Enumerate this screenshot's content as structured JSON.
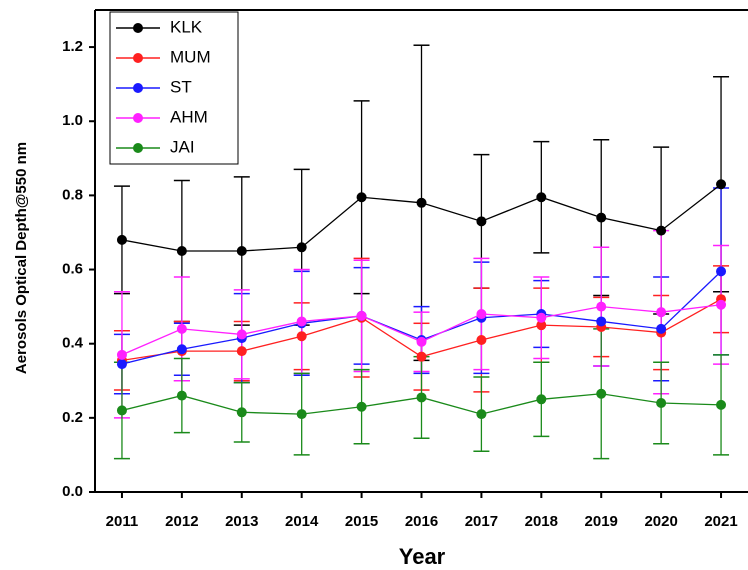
{
  "chart_data": {
    "type": "line",
    "x_label": "Year",
    "y_label": "Aerosols Optical Depth@550 nm",
    "x": [
      2011,
      2012,
      2013,
      2014,
      2015,
      2016,
      2017,
      2018,
      2019,
      2020,
      2021
    ],
    "xlim": [
      2010.55,
      2021.45
    ],
    "xticks": [
      2011,
      2012,
      2013,
      2014,
      2015,
      2016,
      2017,
      2018,
      2019,
      2020,
      2021
    ],
    "ylim": [
      0,
      1.3
    ],
    "yticks": [
      {
        "value": 0,
        "label": "0.0"
      },
      0.2,
      0.4,
      0.6,
      0.8,
      {
        "value": 1,
        "label": "1.0"
      },
      1.2
    ],
    "legend": "upper-left",
    "series": [
      {
        "name": "KLK",
        "color": "#000000",
        "values": [
          0.68,
          0.65,
          0.65,
          0.66,
          0.795,
          0.78,
          0.73,
          0.795,
          0.74,
          0.705,
          0.83
        ],
        "errors": [
          0.145,
          0.19,
          0.2,
          0.21,
          0.26,
          0.425,
          0.18,
          0.15,
          0.21,
          0.225,
          0.29
        ]
      },
      {
        "name": "MUM",
        "color": "#ff2020",
        "values": [
          0.355,
          0.38,
          0.38,
          0.42,
          0.47,
          0.365,
          0.41,
          0.45,
          0.445,
          0.43,
          0.52
        ],
        "errors": [
          0.08,
          0.08,
          0.08,
          0.09,
          0.16,
          0.09,
          0.14,
          0.1,
          0.08,
          0.1,
          0.09
        ]
      },
      {
        "name": "ST",
        "color": "#1a1aff",
        "values": [
          0.345,
          0.385,
          0.415,
          0.455,
          0.475,
          0.41,
          0.47,
          0.48,
          0.46,
          0.44,
          0.595
        ],
        "errors": [
          0.08,
          0.07,
          0.12,
          0.14,
          0.13,
          0.09,
          0.15,
          0.09,
          0.12,
          0.14,
          0.225
        ]
      },
      {
        "name": "AHM",
        "color": "#ff20ff",
        "values": [
          0.37,
          0.44,
          0.425,
          0.46,
          0.475,
          0.405,
          0.48,
          0.47,
          0.5,
          0.485,
          0.505
        ],
        "errors": [
          0.17,
          0.14,
          0.12,
          0.14,
          0.15,
          0.08,
          0.15,
          0.11,
          0.16,
          0.22,
          0.16
        ]
      },
      {
        "name": "JAI",
        "color": "#1a8a1a",
        "values": [
          0.22,
          0.26,
          0.215,
          0.21,
          0.23,
          0.255,
          0.21,
          0.25,
          0.265,
          0.24,
          0.235
        ],
        "errors": [
          0.13,
          0.1,
          0.08,
          0.11,
          0.1,
          0.11,
          0.1,
          0.1,
          0.175,
          0.11,
          0.135
        ]
      }
    ]
  }
}
